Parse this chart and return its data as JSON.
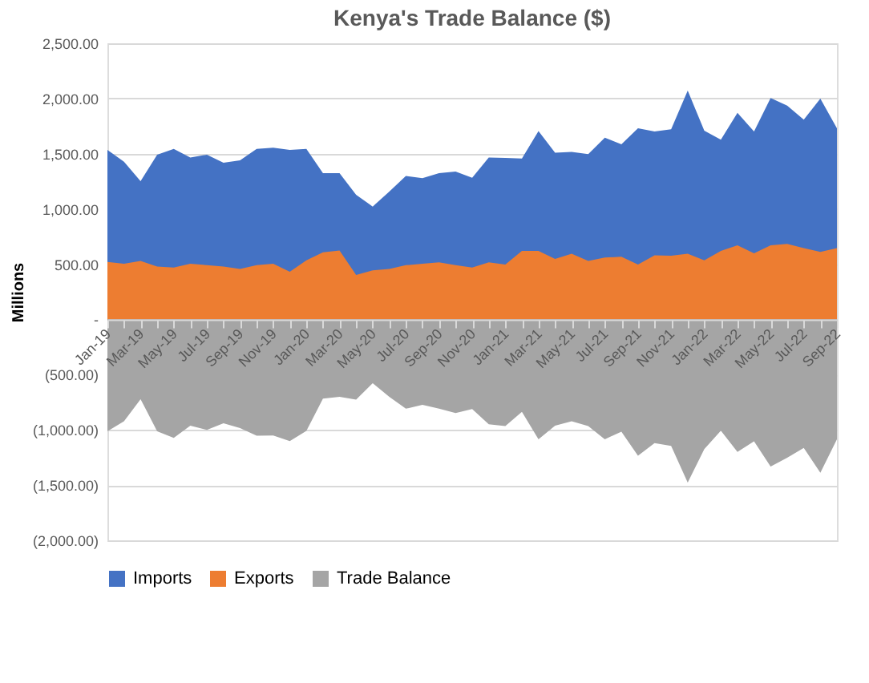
{
  "chart_data": {
    "type": "area",
    "title": "Kenya's Trade Balance ($)",
    "ylabel": "Millions",
    "categories": [
      "Jan-19",
      null,
      "Mar-19",
      null,
      "May-19",
      null,
      "Jul-19",
      null,
      "Sep-19",
      null,
      "Nov-19",
      null,
      "Jan-20",
      null,
      "Mar-20",
      null,
      "May-20",
      null,
      "Jul-20",
      null,
      "Sep-20",
      null,
      "Nov-20",
      null,
      "Jan-21",
      null,
      "Mar-21",
      null,
      "May-21",
      null,
      "Jul-21",
      null,
      "Sep-21",
      null,
      "Nov-21",
      null,
      "Jan-22",
      null,
      "Mar-22",
      null,
      "May-22",
      null,
      "Jul-22",
      null,
      "Sep-22"
    ],
    "series": [
      {
        "name": "Imports",
        "color": "#4472c4",
        "values": [
          1534,
          1427,
          1252,
          1491,
          1543,
          1466,
          1491,
          1419,
          1440,
          1543,
          1555,
          1534,
          1543,
          1325,
          1325,
          1129,
          1022,
          1158,
          1299,
          1278,
          1325,
          1338,
          1282,
          1466,
          1462,
          1457,
          1705,
          1509,
          1517,
          1496,
          1645,
          1585,
          1731,
          1701,
          1722,
          2072,
          1709,
          1628,
          1871,
          1701,
          2004,
          1936,
          1808,
          2000,
          1731
        ]
      },
      {
        "name": "Exports",
        "color": "#ed7d31",
        "values": [
          521,
          504,
          530,
          479,
          470,
          504,
          491,
          479,
          457,
          491,
          504,
          432,
          534,
          607,
          624,
          402,
          444,
          457,
          491,
          504,
          517,
          491,
          470,
          517,
          496,
          620,
          620,
          547,
          594,
          530,
          560,
          568,
          496,
          581,
          577,
          594,
          534,
          620,
          671,
          598,
          671,
          684,
          645,
          611,
          645
        ]
      },
      {
        "name": "Trade Balance",
        "color": "#a5a5a5",
        "values": [
          -1013,
          -923,
          -722,
          -1012,
          -1073,
          -962,
          -1000,
          -940,
          -983,
          -1052,
          -1051,
          -1102,
          -1009,
          -718,
          -701,
          -727,
          -578,
          -701,
          -808,
          -774,
          -808,
          -847,
          -812,
          -949,
          -966,
          -837,
          -1085,
          -962,
          -923,
          -966,
          -1085,
          -1017,
          -1235,
          -1120,
          -1145,
          -1478,
          -1175,
          -1008,
          -1200,
          -1103,
          -1333,
          -1252,
          -1163,
          -1389,
          -1086
        ]
      }
    ],
    "ylim": [
      -2000,
      2500
    ],
    "yticks": [
      {
        "value": -2000,
        "label": "(2,000.00)"
      },
      {
        "value": -1500,
        "label": "(1,500.00)"
      },
      {
        "value": -1000,
        "label": "(1,000.00)"
      },
      {
        "value": -500,
        "label": "(500.00)"
      },
      {
        "value": 0,
        "label": "-"
      },
      {
        "value": 500,
        "label": "500.00"
      },
      {
        "value": 1000,
        "label": "1,000.00"
      },
      {
        "value": 1500,
        "label": "1,500.00"
      },
      {
        "value": 2000,
        "label": "2,000.00"
      },
      {
        "value": 2500,
        "label": "2,500.00"
      }
    ],
    "grid": "y",
    "legend": "bottom"
  }
}
